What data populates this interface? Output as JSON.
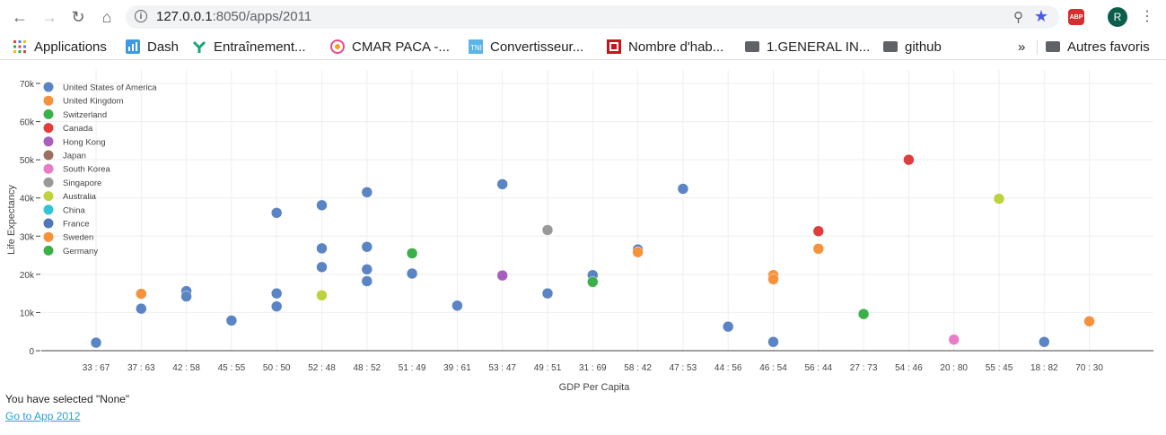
{
  "browser": {
    "url_host": "127.0.0.1",
    "url_path": ":8050/apps/2011",
    "avatar_letter": "R",
    "abp_label": "ABP"
  },
  "bookmarks": {
    "items": [
      {
        "label": "Applications",
        "icon": "apps-grid-icon"
      },
      {
        "label": "Dash",
        "icon": "dash-icon"
      },
      {
        "label": "Entraînement...",
        "icon": "entrainement-icon"
      },
      {
        "label": "CMAR PACA -...",
        "icon": "cmar-icon"
      },
      {
        "label": "Convertisseur...",
        "icon": "convertisseur-icon"
      },
      {
        "label": "Nombre d'hab...",
        "icon": "habitants-icon"
      },
      {
        "label": "1.GENERAL IN...",
        "icon": "folder-icon"
      },
      {
        "label": "github",
        "icon": "folder-icon"
      }
    ],
    "overflow": "»",
    "others_label": "Autres favoris"
  },
  "chart_data": {
    "type": "scatter",
    "xlabel": "GDP Per Capita",
    "ylabel": "Life Expectancy",
    "categories": [
      "33 : 67",
      "37 : 63",
      "42 : 58",
      "45 : 55",
      "50 : 50",
      "52 : 48",
      "48 : 52",
      "51 : 49",
      "39 : 61",
      "53 : 47",
      "49 : 51",
      "31 : 69",
      "58 : 42",
      "47 : 53",
      "44 : 56",
      "46 : 54",
      "56 : 44",
      "27 : 73",
      "54 : 46",
      "20 : 80",
      "55 : 45",
      "18 : 82",
      "70 : 30"
    ],
    "yticks": [
      "0",
      "10k",
      "20k",
      "30k",
      "40k",
      "50k",
      "60k",
      "70k"
    ],
    "ylim": [
      0,
      70000
    ],
    "grid": true,
    "legend_position": "top-left",
    "series": [
      {
        "name": "United States of America",
        "color": "#5b84c4",
        "points": [
          {
            "x": "33 : 67",
            "y": 2100
          },
          {
            "x": "37 : 63",
            "y": 11000
          },
          {
            "x": "42 : 58",
            "y": 15600
          },
          {
            "x": "42 : 58",
            "y": 14200
          },
          {
            "x": "45 : 55",
            "y": 7900
          },
          {
            "x": "50 : 50",
            "y": 36100
          },
          {
            "x": "50 : 50",
            "y": 15000
          },
          {
            "x": "50 : 50",
            "y": 11600
          },
          {
            "x": "52 : 48",
            "y": 38100
          },
          {
            "x": "52 : 48",
            "y": 26800
          },
          {
            "x": "52 : 48",
            "y": 21900
          },
          {
            "x": "48 : 52",
            "y": 41500
          },
          {
            "x": "48 : 52",
            "y": 27200
          },
          {
            "x": "48 : 52",
            "y": 21300
          },
          {
            "x": "48 : 52",
            "y": 18200
          },
          {
            "x": "51 : 49",
            "y": 20200
          },
          {
            "x": "39 : 61",
            "y": 11800
          },
          {
            "x": "53 : 47",
            "y": 43600
          },
          {
            "x": "49 : 51",
            "y": 15000
          },
          {
            "x": "31 : 69",
            "y": 19800
          },
          {
            "x": "58 : 42",
            "y": 26500
          },
          {
            "x": "47 : 53",
            "y": 42400
          },
          {
            "x": "44 : 56",
            "y": 6300
          },
          {
            "x": "46 : 54",
            "y": 2300
          },
          {
            "x": "18 : 82",
            "y": 2300
          }
        ]
      },
      {
        "name": "United Kingdom",
        "color": "#f5923a",
        "points": [
          {
            "x": "37 : 63",
            "y": 14900
          },
          {
            "x": "58 : 42",
            "y": 25800
          },
          {
            "x": "46 : 54",
            "y": 19800
          },
          {
            "x": "46 : 54",
            "y": 18700
          },
          {
            "x": "56 : 44",
            "y": 26700
          },
          {
            "x": "70 : 30",
            "y": 7700
          }
        ]
      },
      {
        "name": "Switzerland",
        "color": "#3bb04a",
        "points": [
          {
            "x": "51 : 49",
            "y": 25500
          },
          {
            "x": "31 : 69",
            "y": 18000
          },
          {
            "x": "27 : 73",
            "y": 9600
          }
        ]
      },
      {
        "name": "Canada",
        "color": "#e23d3d",
        "points": [
          {
            "x": "56 : 44",
            "y": 31300
          },
          {
            "x": "54 : 46",
            "y": 50000
          }
        ]
      },
      {
        "name": "Hong Kong",
        "color": "#a860c0",
        "points": [
          {
            "x": "53 : 47",
            "y": 19700
          }
        ]
      },
      {
        "name": "Japan",
        "color": "#9a7060",
        "points": []
      },
      {
        "name": "South Korea",
        "color": "#e97cc8",
        "points": [
          {
            "x": "20 : 80",
            "y": 2900
          }
        ]
      },
      {
        "name": "Singapore",
        "color": "#999999",
        "points": [
          {
            "x": "49 : 51",
            "y": 31600
          }
        ]
      },
      {
        "name": "Australia",
        "color": "#bdd23c",
        "points": [
          {
            "x": "52 : 48",
            "y": 14500
          },
          {
            "x": "55 : 45",
            "y": 39800
          }
        ]
      },
      {
        "name": "China",
        "color": "#30c5d6",
        "points": []
      },
      {
        "name": "France",
        "color": "#4f78b8",
        "points": []
      },
      {
        "name": "Sweden",
        "color": "#f5923a",
        "points": []
      },
      {
        "name": "Germany",
        "color": "#3bb04a",
        "points": []
      }
    ]
  },
  "footer": {
    "status_text": "You have selected \"None\"",
    "link_text": "Go to App 2012"
  }
}
